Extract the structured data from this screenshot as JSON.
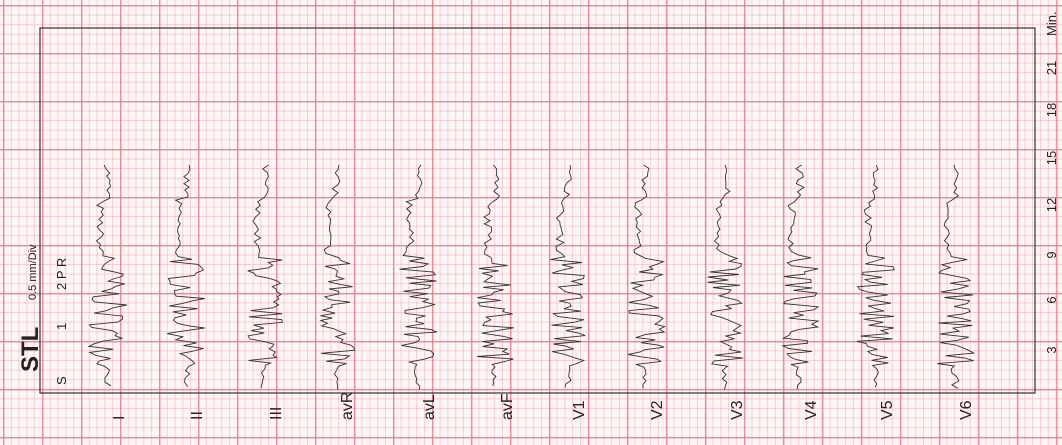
{
  "header": {
    "title": "STL",
    "scale": "0.5 mm/Div",
    "markers": [
      "S",
      "1",
      "2 P R"
    ]
  },
  "leads": [
    "I",
    "II",
    "III",
    "avR",
    "avL",
    "avF",
    "V1",
    "V2",
    "V3",
    "V4",
    "V5",
    "V6"
  ],
  "time_axis": {
    "ticks": [
      "3",
      "6",
      "9",
      "12",
      "15",
      "18",
      "21"
    ],
    "unit": "Min."
  }
}
